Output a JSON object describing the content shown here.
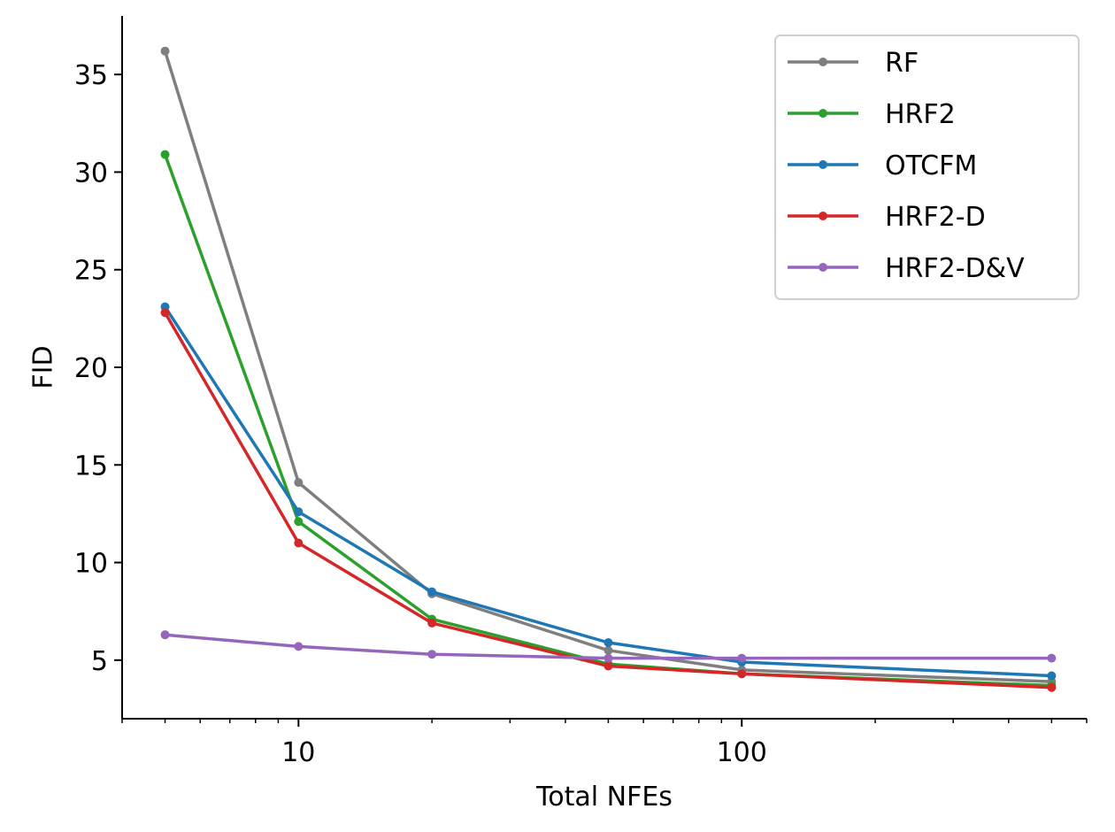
{
  "chart_data": {
    "type": "line",
    "title": "",
    "xlabel": "Total NFEs",
    "ylabel": "FID",
    "xscale": "log",
    "xlim": [
      4,
      600
    ],
    "ylim": [
      2,
      38
    ],
    "x": [
      5,
      10,
      20,
      50,
      100,
      500
    ],
    "xticks": [
      {
        "value": 10,
        "label": "10"
      },
      {
        "value": 100,
        "label": "100"
      }
    ],
    "yticks": [
      {
        "value": 5,
        "label": "5"
      },
      {
        "value": 10,
        "label": "10"
      },
      {
        "value": 15,
        "label": "15"
      },
      {
        "value": 20,
        "label": "20"
      },
      {
        "value": 25,
        "label": "25"
      },
      {
        "value": 30,
        "label": "30"
      },
      {
        "value": 35,
        "label": "35"
      }
    ],
    "legend_position": "top-right",
    "series": [
      {
        "name": "RF",
        "color": "#7f7f7f",
        "values": [
          36.2,
          14.1,
          8.4,
          5.5,
          4.5,
          3.9
        ]
      },
      {
        "name": "HRF2",
        "color": "#2ca02c",
        "values": [
          30.9,
          12.1,
          7.1,
          4.8,
          4.3,
          3.7
        ]
      },
      {
        "name": "OTCFM",
        "color": "#1f77b4",
        "values": [
          23.1,
          12.6,
          8.5,
          5.9,
          4.9,
          4.2
        ]
      },
      {
        "name": "HRF2-D",
        "color": "#d62728",
        "values": [
          22.8,
          11.0,
          6.9,
          4.7,
          4.3,
          3.6
        ]
      },
      {
        "name": "HRF2-D&V",
        "color": "#9467bd",
        "values": [
          6.3,
          5.7,
          5.3,
          5.1,
          5.1,
          5.1
        ]
      }
    ]
  }
}
